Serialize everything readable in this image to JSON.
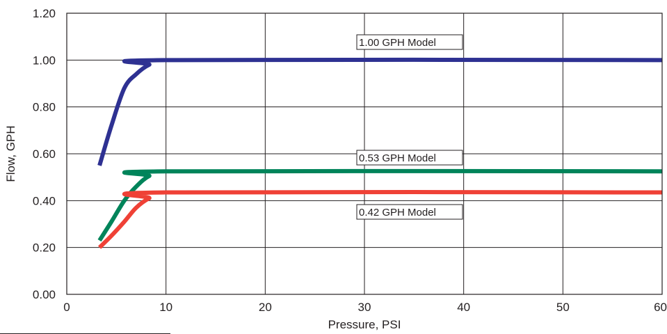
{
  "chart_data": {
    "type": "line",
    "xlabel": "Pressure, PSI",
    "ylabel": "Flow, GPH",
    "xlim": [
      0,
      60
    ],
    "ylim": [
      0,
      1.2
    ],
    "x_ticks": [
      "0",
      "10",
      "20",
      "30",
      "40",
      "50",
      "60"
    ],
    "y_ticks": [
      "0.00",
      "0.20",
      "0.40",
      "0.60",
      "0.80",
      "1.00",
      "1.20"
    ],
    "grid": true,
    "series": [
      {
        "name": "1.00 GPH Model",
        "color": "#2e3192",
        "points": [
          [
            3.3,
            0.55
          ],
          [
            4.5,
            0.72
          ],
          [
            5.8,
            0.88
          ],
          [
            7,
            0.94
          ],
          [
            8.3,
            0.98
          ],
          [
            10,
            1.0
          ],
          [
            60,
            1.0
          ]
        ]
      },
      {
        "name": "0.53 GPH Model",
        "color": "#00845a",
        "points": [
          [
            3.3,
            0.23
          ],
          [
            4.5,
            0.31
          ],
          [
            5.8,
            0.4
          ],
          [
            7,
            0.46
          ],
          [
            8.3,
            0.505
          ],
          [
            10,
            0.525
          ],
          [
            60,
            0.525
          ]
        ]
      },
      {
        "name": "0.42 GPH Model",
        "color": "#ef4136",
        "points": [
          [
            3.3,
            0.2
          ],
          [
            4.5,
            0.25
          ],
          [
            5.8,
            0.31
          ],
          [
            7,
            0.37
          ],
          [
            8.3,
            0.41
          ],
          [
            10,
            0.435
          ],
          [
            60,
            0.435
          ]
        ]
      }
    ]
  }
}
